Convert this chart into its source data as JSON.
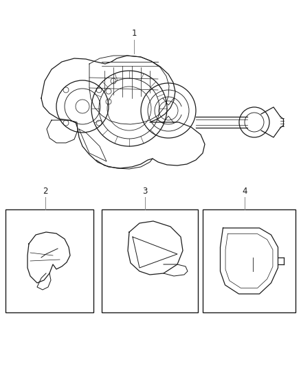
{
  "background_color": "#ffffff",
  "fig_width": 4.38,
  "fig_height": 5.33,
  "dpi": 100,
  "label_1": "1",
  "label_2": "2",
  "label_3": "3",
  "label_4": "4",
  "label_fontsize": 8.5,
  "line_color": "#1a1a1a",
  "lw": 0.9
}
